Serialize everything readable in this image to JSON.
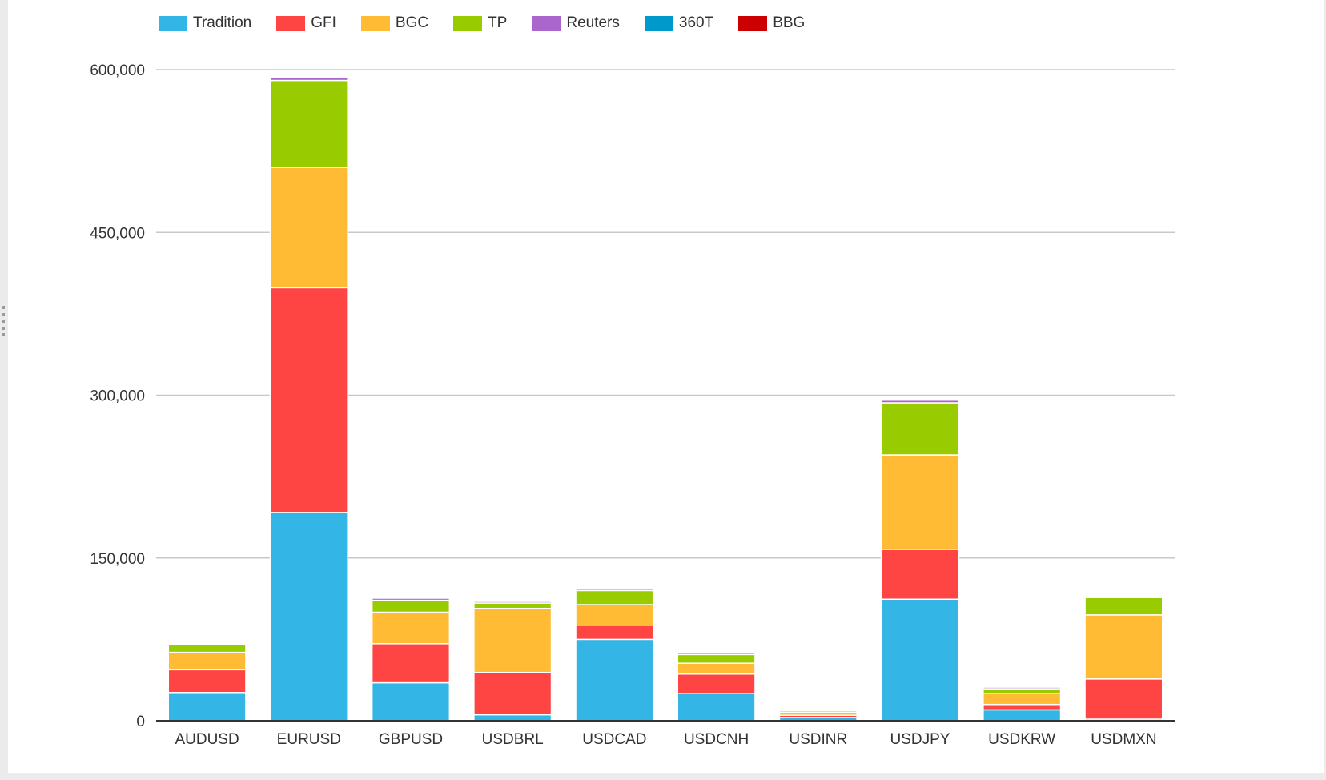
{
  "chart_data": {
    "type": "bar",
    "stacked": true,
    "categories": [
      "AUDUSD",
      "EURUSD",
      "GBPUSD",
      "USDBRL",
      "USDCAD",
      "USDCNH",
      "USDINR",
      "USDJPY",
      "USDKRW",
      "USDMXN"
    ],
    "series": [
      {
        "name": "Tradition",
        "color": "#33b5e5",
        "values": [
          26000,
          192000,
          35000,
          5500,
          75000,
          25000,
          3000,
          112000,
          10000,
          1500
        ]
      },
      {
        "name": "GFI",
        "color": "#ff4444",
        "values": [
          21000,
          207000,
          36000,
          39000,
          13000,
          18000,
          2000,
          46000,
          5000,
          37000
        ]
      },
      {
        "name": "BGC",
        "color": "#ffbb33",
        "values": [
          16000,
          111000,
          29000,
          59000,
          19000,
          10000,
          3000,
          87000,
          10000,
          59000
        ]
      },
      {
        "name": "TP",
        "color": "#99cc00",
        "values": [
          7000,
          80000,
          11000,
          5000,
          13000,
          8000,
          1500,
          48000,
          4500,
          16000
        ]
      },
      {
        "name": "Reuters",
        "color": "#aa66cc",
        "values": [
          1000,
          3000,
          2000,
          1500,
          1500,
          1500,
          1000,
          2500,
          1500,
          1500
        ]
      },
      {
        "name": "360T",
        "color": "#0099cc",
        "values": [
          500,
          500,
          500,
          500,
          500,
          500,
          500,
          500,
          500,
          500
        ]
      },
      {
        "name": "BBG",
        "color": "#cc0000",
        "values": [
          500,
          500,
          500,
          500,
          500,
          500,
          500,
          500,
          500,
          500
        ]
      }
    ],
    "yticks": [
      0,
      150000,
      300000,
      450000,
      600000
    ],
    "ytick_labels": [
      "0",
      "150,000",
      "300,000",
      "450,000",
      "600,000"
    ],
    "ylim": [
      0,
      600000
    ],
    "grid": true,
    "legend": "top-left",
    "title": "",
    "xlabel": "",
    "ylabel": ""
  }
}
